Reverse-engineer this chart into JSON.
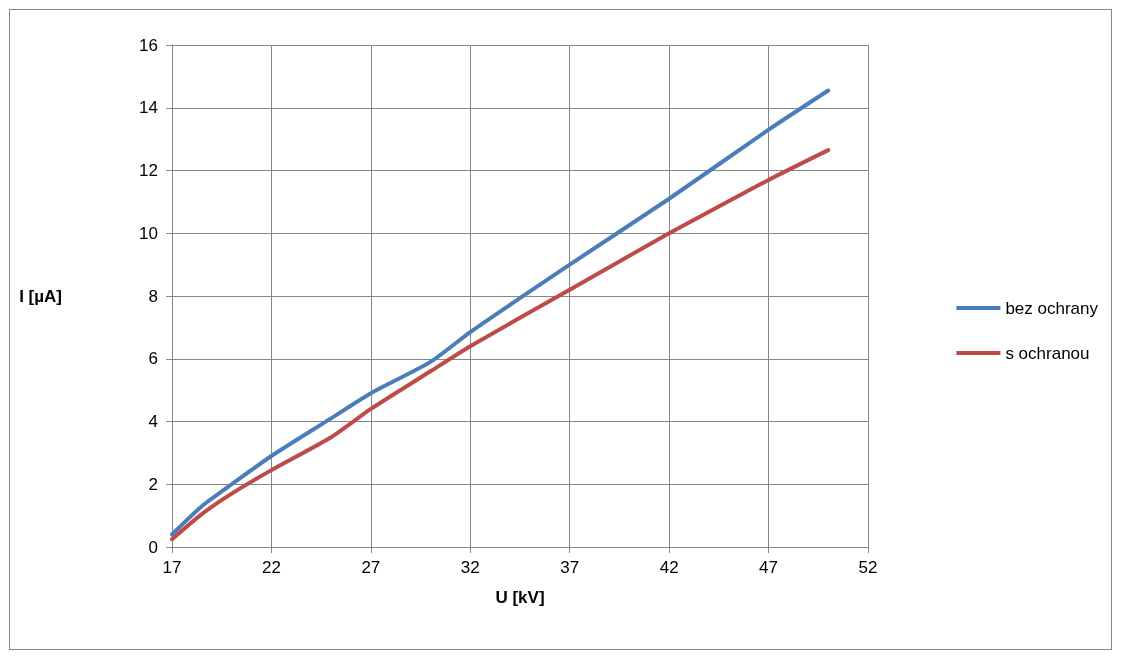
{
  "chart_data": {
    "type": "line",
    "xlabel": "U [kV]",
    "ylabel": "I [µA]",
    "xlim": [
      17,
      52
    ],
    "xticks": [
      17,
      22,
      27,
      32,
      37,
      42,
      47,
      52
    ],
    "ylim": [
      0,
      16
    ],
    "yticks": [
      0,
      2,
      4,
      6,
      8,
      10,
      12,
      14,
      16
    ],
    "grid": true,
    "legend": "right",
    "marker": "none",
    "line_style": "solid",
    "series": [
      {
        "name": "bez ochrany",
        "color": "#4a7ebb",
        "x": [
          17,
          18.5,
          20,
          22,
          25,
          27,
          30,
          32,
          37,
          42,
          47,
          50
        ],
        "values": [
          0.4,
          1.3,
          2.0,
          2.9,
          4.1,
          4.9,
          5.9,
          6.85,
          9.0,
          11.1,
          13.3,
          14.55
        ]
      },
      {
        "name": "s ochranou",
        "color": "#be4b48",
        "x": [
          17,
          18.5,
          20,
          22,
          25,
          27,
          30,
          32,
          37,
          42,
          47,
          50
        ],
        "values": [
          0.25,
          1.05,
          1.7,
          2.45,
          3.5,
          4.4,
          5.6,
          6.4,
          8.2,
          10.0,
          11.7,
          12.65
        ]
      }
    ]
  }
}
